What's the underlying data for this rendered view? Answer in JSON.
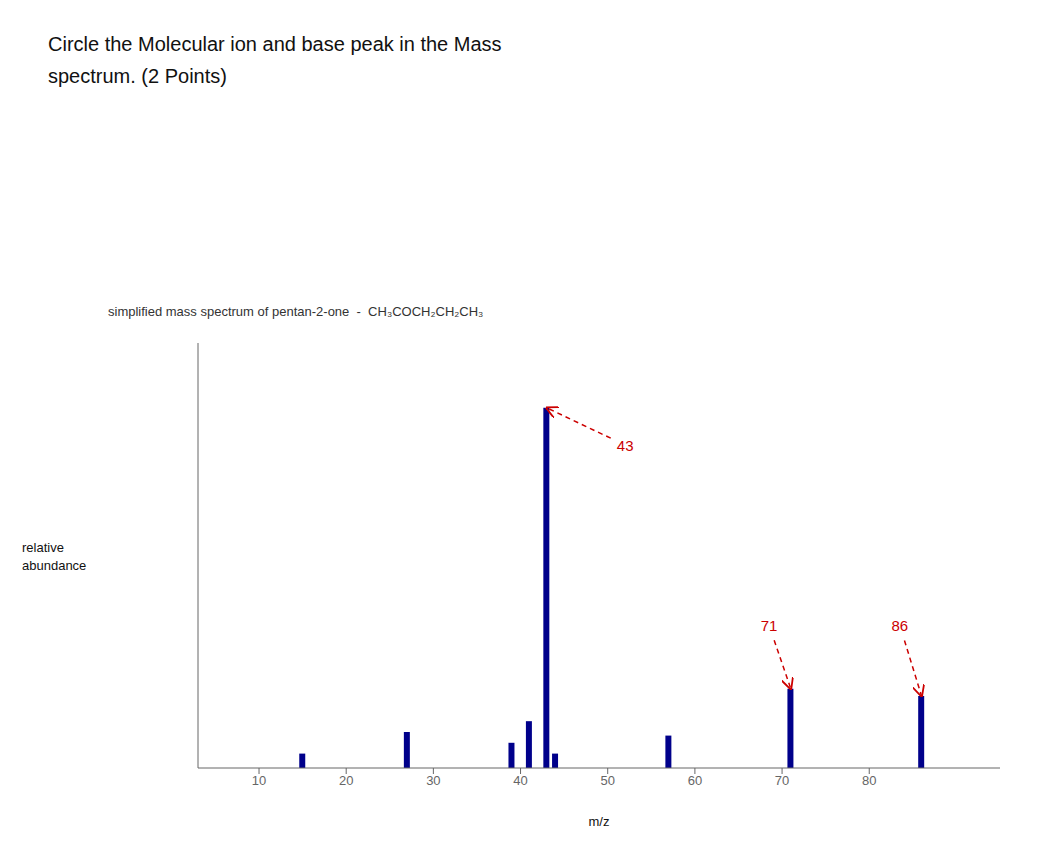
{
  "chart_data": {
    "type": "bar",
    "title": "Circle the Molecular ion and base peak in the Mass\nspectrum. (2 Points)",
    "subtitle": "simplified mass spectrum of pentan-2-one  -  CH₃COCH₂CH₂CH₃",
    "xlabel": "m/z",
    "ylabel": "relative\nabundance",
    "x": [
      15,
      27,
      39,
      41,
      43,
      44,
      57,
      71,
      86
    ],
    "values": [
      0.04,
      0.1,
      0.07,
      0.13,
      1.0,
      0.04,
      0.09,
      0.22,
      0.2
    ],
    "color": "#00008B",
    "xlim": [
      3,
      95
    ],
    "ylim": [
      0,
      1.18
    ],
    "xticks": [
      10,
      20,
      30,
      40,
      50,
      60,
      70,
      80
    ],
    "tick_labels": "x",
    "grid": false,
    "annotations": [
      {
        "text": "43",
        "x": 43,
        "y": 1.0,
        "text_x": 52,
        "text_y": 0.88,
        "color": "#cc0000"
      },
      {
        "text": "71",
        "x": 71,
        "y": 0.22,
        "text_x": 68.5,
        "text_y": 0.38,
        "color": "#cc0000"
      },
      {
        "text": "86",
        "x": 86,
        "y": 0.2,
        "text_x": 83.5,
        "text_y": 0.38,
        "color": "#cc0000"
      }
    ]
  }
}
